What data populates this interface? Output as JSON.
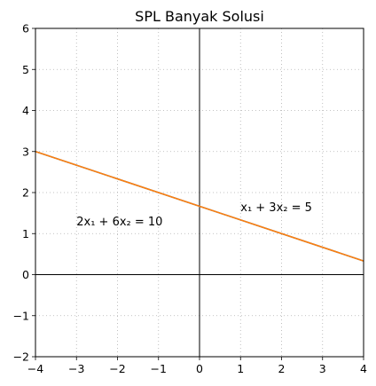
{
  "chart_data": {
    "type": "line",
    "title": "SPL Banyak Solusi",
    "xlabel": "",
    "ylabel": "",
    "xlim": [
      -4,
      4
    ],
    "ylim": [
      -2,
      6
    ],
    "x_ticks": [
      -4,
      -3,
      -2,
      -1,
      0,
      1,
      2,
      3,
      4
    ],
    "y_ticks": [
      -2,
      -1,
      0,
      1,
      2,
      3,
      4,
      5,
      6
    ],
    "x_tick_labels": [
      "−4",
      "−3",
      "−2",
      "−1",
      "0",
      "1",
      "2",
      "3",
      "4"
    ],
    "y_tick_labels": [
      "−2",
      "−1",
      "0",
      "1",
      "2",
      "3",
      "4",
      "5",
      "6"
    ],
    "grid": true,
    "axis_lines": true,
    "series": [
      {
        "x": [
          -4,
          4
        ],
        "y": [
          3.0,
          0.3333
        ],
        "color": "#1f77b4"
      },
      {
        "x": [
          -4,
          4
        ],
        "y": [
          3.0,
          0.3333
        ],
        "color": "#ff7f0e"
      }
    ],
    "annotations": [
      {
        "text": "x₁ + 3x₂ = 5",
        "x": 1.0,
        "y": 1.55
      },
      {
        "text": "2x₁ + 6x₂ = 10",
        "x": -3.0,
        "y": 1.2
      }
    ]
  }
}
